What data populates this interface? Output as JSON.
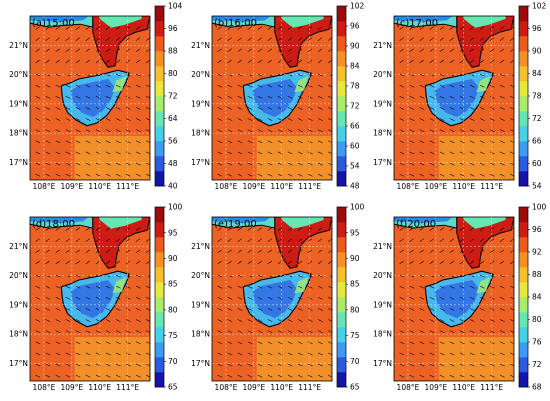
{
  "figure": {
    "lat_labels": [
      "21°N",
      "20°N",
      "19°N",
      "18°N",
      "17°N"
    ],
    "lon_labels": [
      "108°E",
      "109°E",
      "110°E",
      "111°E"
    ],
    "colorbar_colors": [
      "#1414a8",
      "#2c5ae0",
      "#3c9cf2",
      "#46d0e8",
      "#66e6b0",
      "#a8ec6a",
      "#e8e83c",
      "#f6c02c",
      "#f69024",
      "#ee5a1c",
      "#cc1c14",
      "#9c0c0c"
    ],
    "panels": [
      {
        "title": "(a)15:00",
        "ticks": [
          "104",
          "96",
          "88",
          "80",
          "72",
          "64",
          "56",
          "48",
          "40"
        ]
      },
      {
        "title": "(b)16:00",
        "ticks": [
          "102",
          "96",
          "90",
          "84",
          "78",
          "72",
          "66",
          "60",
          "54",
          "48"
        ]
      },
      {
        "title": "(c)17:00",
        "ticks": [
          "102",
          "96",
          "90",
          "84",
          "78",
          "72",
          "66",
          "60",
          "54"
        ]
      },
      {
        "title": "(d)18:00",
        "ticks": [
          "100",
          "95",
          "90",
          "85",
          "80",
          "75",
          "70",
          "65"
        ]
      },
      {
        "title": "(e)19:00",
        "ticks": [
          "100",
          "95",
          "90",
          "85",
          "80",
          "75",
          "70",
          "65"
        ]
      },
      {
        "title": "(f)20:00",
        "ticks": [
          "100",
          "96",
          "92",
          "88",
          "84",
          "80",
          "76",
          "72",
          "68"
        ]
      }
    ]
  }
}
